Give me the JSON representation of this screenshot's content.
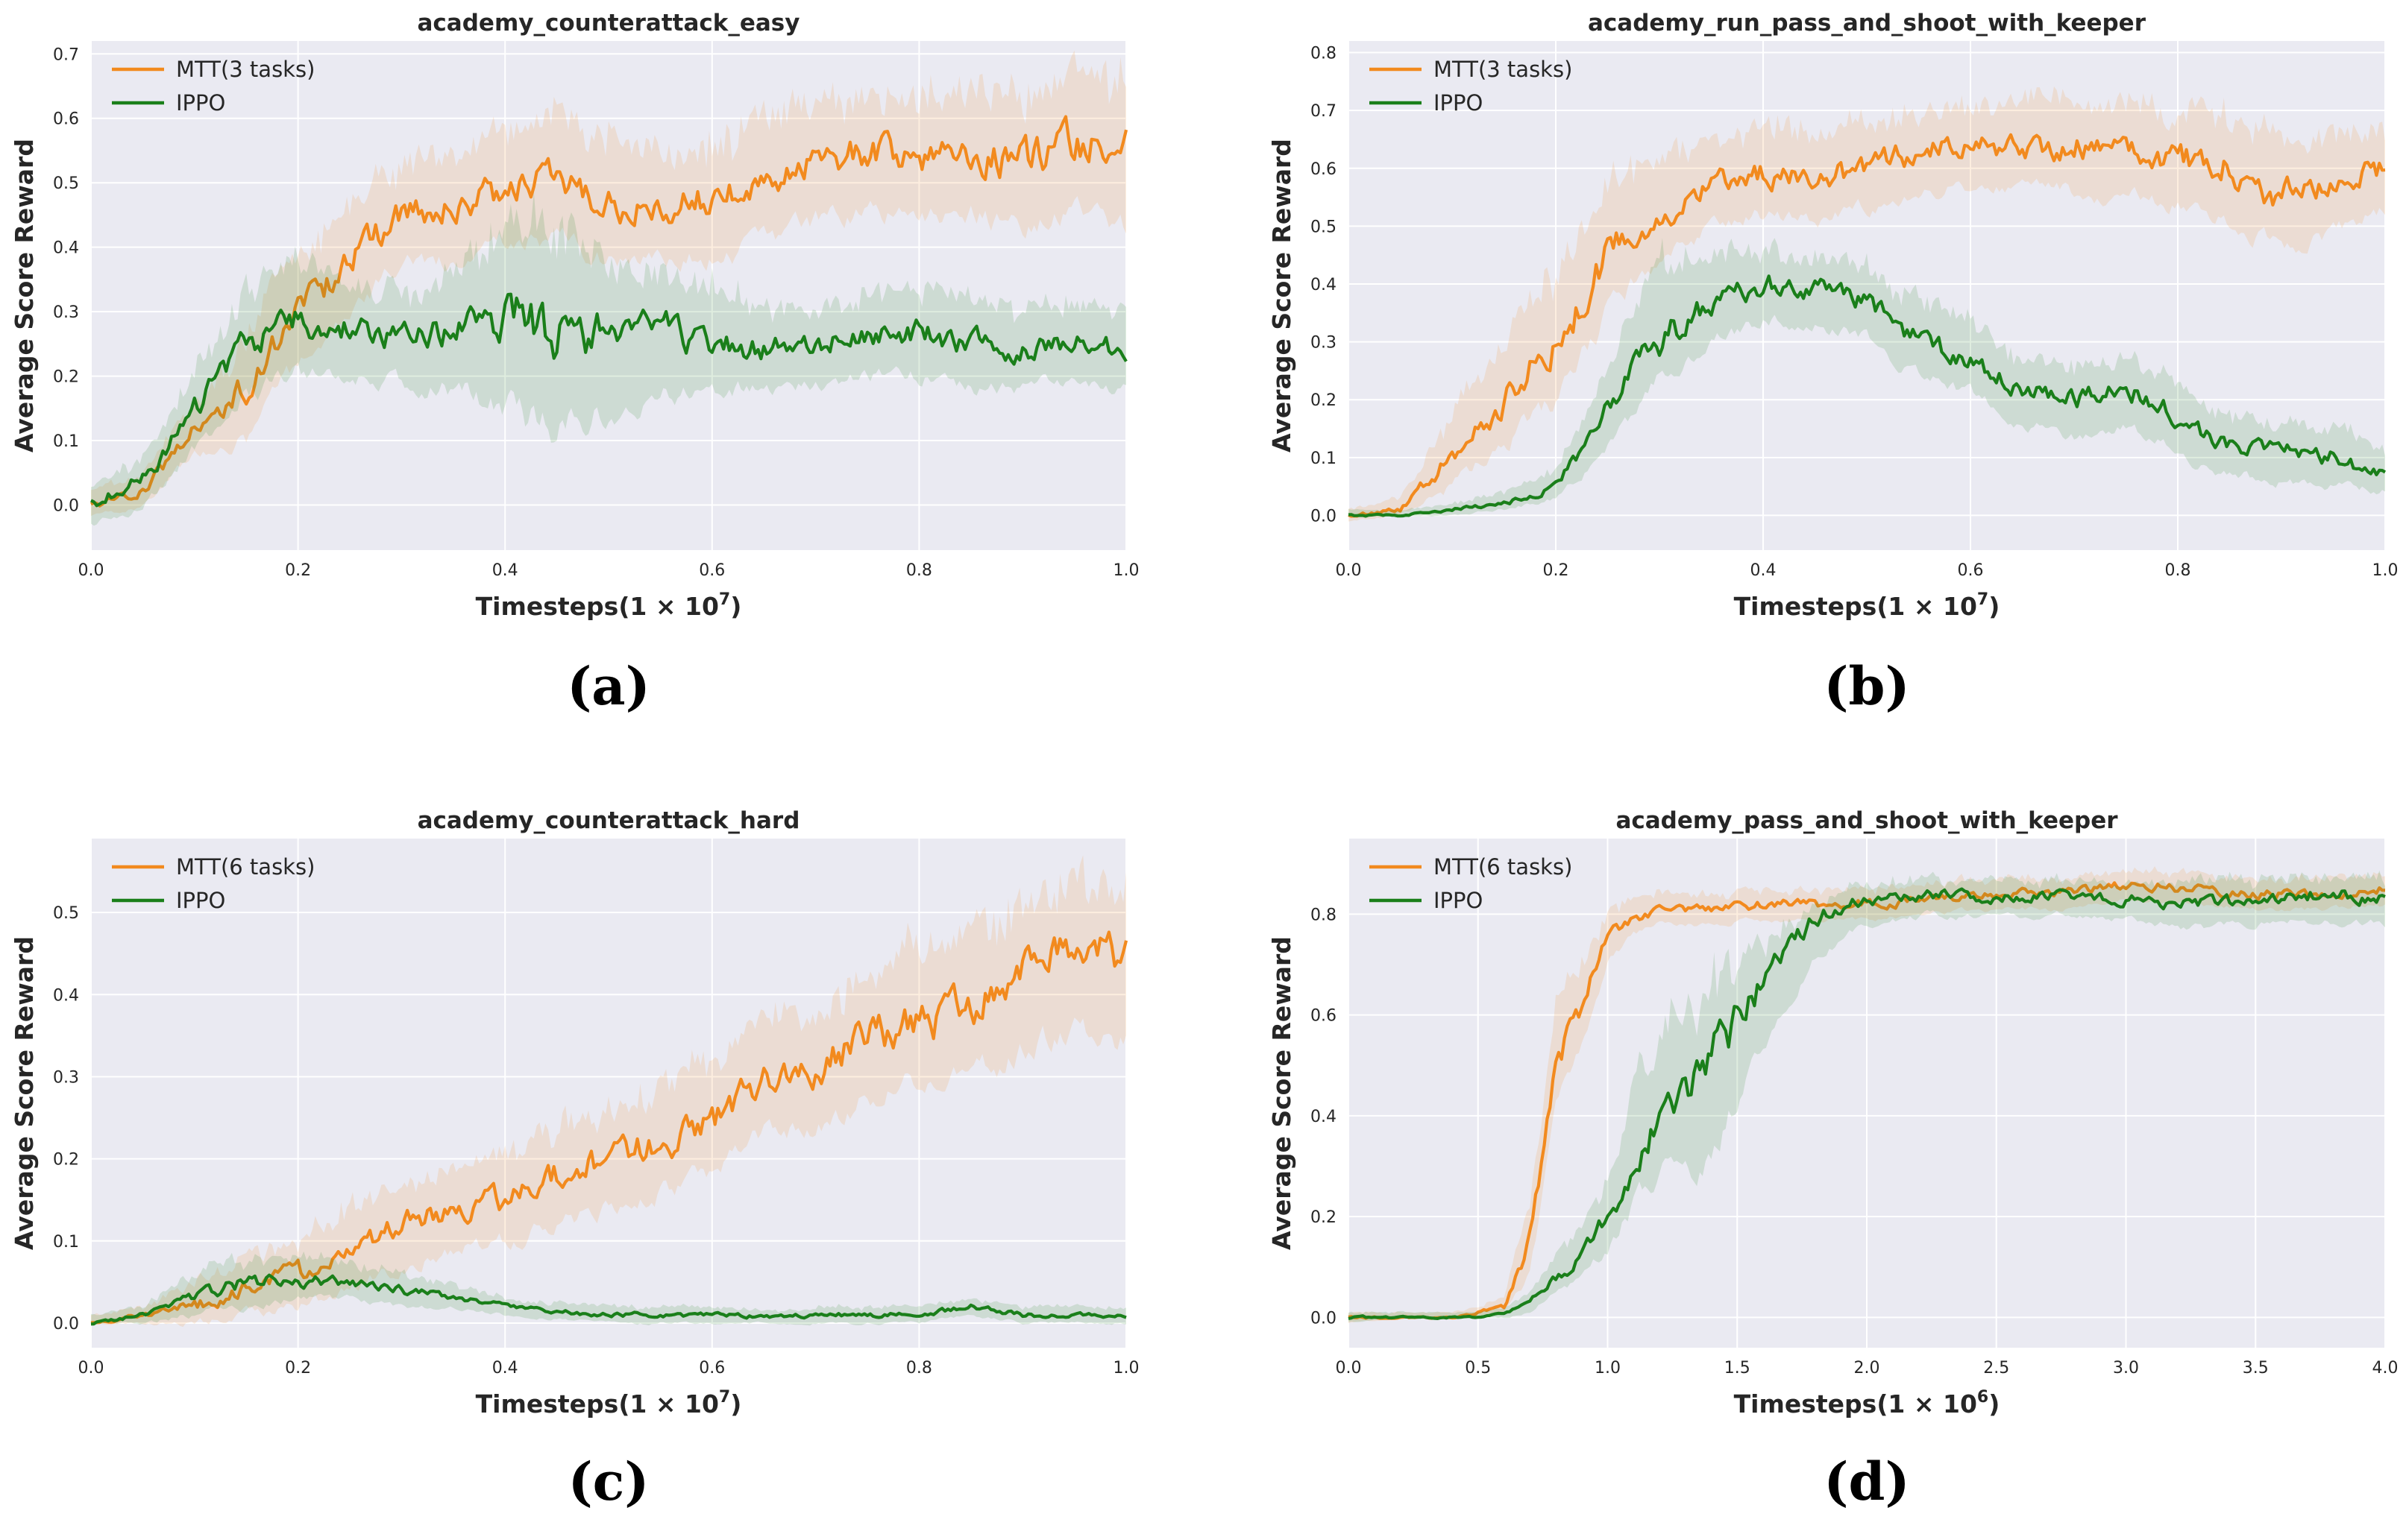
{
  "figure": {
    "panel_labels": [
      "(a)",
      "(b)",
      "(c)",
      "(d)"
    ]
  },
  "colors": {
    "mtt": "#f28a1e",
    "ippo": "#1a7f1a",
    "plot_bg": "#eaeaf2",
    "grid": "#ffffff"
  },
  "chart_data": [
    {
      "type": "line",
      "title": "academy_counterattack_easy",
      "xlabel": "Timesteps(1 × 10^7)",
      "xlabel_base": "Timesteps(1 × 10",
      "xlabel_exp": "7",
      "ylabel": "Average Score Reward",
      "xlim": [
        0.0,
        1.0
      ],
      "ylim": [
        -0.07,
        0.72
      ],
      "xticks": [
        "0.0",
        "0.2",
        "0.4",
        "0.6",
        "0.8",
        "1.0"
      ],
      "xtick_values": [
        0.0,
        0.2,
        0.4,
        0.6,
        0.8,
        1.0
      ],
      "yticks": [
        "0.0",
        "0.1",
        "0.2",
        "0.3",
        "0.4",
        "0.5",
        "0.6",
        "0.7"
      ],
      "ytick_values": [
        0.0,
        0.1,
        0.2,
        0.3,
        0.4,
        0.5,
        0.6,
        0.7
      ],
      "grid": true,
      "legend_position": "top-left",
      "series": [
        {
          "name": "MTT(3 tasks)",
          "x": [
            0.0,
            0.05,
            0.1,
            0.15,
            0.2,
            0.25,
            0.3,
            0.35,
            0.4,
            0.45,
            0.5,
            0.55,
            0.6,
            0.65,
            0.7,
            0.75,
            0.8,
            0.85,
            0.9,
            0.95,
            1.0
          ],
          "y": [
            0.0,
            0.02,
            0.12,
            0.18,
            0.3,
            0.38,
            0.45,
            0.46,
            0.49,
            0.5,
            0.47,
            0.45,
            0.48,
            0.49,
            0.53,
            0.55,
            0.54,
            0.55,
            0.53,
            0.56,
            0.55
          ],
          "y_low": [
            -0.02,
            0.0,
            0.08,
            0.1,
            0.22,
            0.3,
            0.38,
            0.38,
            0.41,
            0.41,
            0.38,
            0.38,
            0.39,
            0.4,
            0.44,
            0.46,
            0.45,
            0.45,
            0.43,
            0.45,
            0.43
          ],
          "y_high": [
            0.02,
            0.05,
            0.16,
            0.26,
            0.38,
            0.47,
            0.53,
            0.55,
            0.58,
            0.6,
            0.57,
            0.54,
            0.57,
            0.58,
            0.62,
            0.64,
            0.63,
            0.65,
            0.63,
            0.66,
            0.65
          ]
        },
        {
          "name": "IPPO",
          "x": [
            0.0,
            0.05,
            0.1,
            0.15,
            0.2,
            0.25,
            0.3,
            0.35,
            0.4,
            0.45,
            0.5,
            0.55,
            0.6,
            0.65,
            0.7,
            0.75,
            0.8,
            0.85,
            0.9,
            0.95,
            1.0
          ],
          "y": [
            0.0,
            0.04,
            0.15,
            0.25,
            0.29,
            0.27,
            0.26,
            0.27,
            0.3,
            0.28,
            0.26,
            0.27,
            0.26,
            0.24,
            0.25,
            0.26,
            0.27,
            0.25,
            0.24,
            0.25,
            0.24
          ],
          "y_low": [
            -0.03,
            0.0,
            0.09,
            0.17,
            0.2,
            0.2,
            0.19,
            0.18,
            0.15,
            0.12,
            0.14,
            0.17,
            0.18,
            0.18,
            0.19,
            0.2,
            0.2,
            0.18,
            0.18,
            0.19,
            0.18
          ],
          "y_high": [
            0.03,
            0.08,
            0.21,
            0.33,
            0.38,
            0.34,
            0.33,
            0.36,
            0.43,
            0.44,
            0.37,
            0.36,
            0.34,
            0.3,
            0.31,
            0.32,
            0.34,
            0.32,
            0.3,
            0.31,
            0.3
          ]
        }
      ]
    },
    {
      "type": "line",
      "title": "academy_run_pass_and_shoot_with_keeper",
      "xlabel": "Timesteps(1 × 10^7)",
      "xlabel_base": "Timesteps(1 × 10",
      "xlabel_exp": "7",
      "ylabel": "Average Score Reward",
      "xlim": [
        0.0,
        1.0
      ],
      "ylim": [
        -0.06,
        0.82
      ],
      "xticks": [
        "0.0",
        "0.2",
        "0.4",
        "0.6",
        "0.8",
        "1.0"
      ],
      "xtick_values": [
        0.0,
        0.2,
        0.4,
        0.6,
        0.8,
        1.0
      ],
      "yticks": [
        "0.0",
        "0.1",
        "0.2",
        "0.3",
        "0.4",
        "0.5",
        "0.6",
        "0.7",
        "0.8"
      ],
      "ytick_values": [
        0.0,
        0.1,
        0.2,
        0.3,
        0.4,
        0.5,
        0.6,
        0.7,
        0.8
      ],
      "grid": true,
      "legend_position": "top-left",
      "series": [
        {
          "name": "MTT(3 tasks)",
          "x": [
            0.0,
            0.05,
            0.1,
            0.15,
            0.2,
            0.25,
            0.3,
            0.35,
            0.4,
            0.45,
            0.5,
            0.55,
            0.6,
            0.65,
            0.7,
            0.75,
            0.8,
            0.85,
            0.9,
            0.95,
            1.0
          ],
          "y": [
            0.0,
            0.01,
            0.1,
            0.2,
            0.3,
            0.45,
            0.52,
            0.57,
            0.59,
            0.58,
            0.6,
            0.63,
            0.64,
            0.63,
            0.64,
            0.63,
            0.62,
            0.6,
            0.55,
            0.57,
            0.6
          ],
          "y_low": [
            -0.01,
            0.0,
            0.05,
            0.12,
            0.2,
            0.35,
            0.44,
            0.5,
            0.52,
            0.51,
            0.53,
            0.56,
            0.57,
            0.56,
            0.56,
            0.55,
            0.54,
            0.5,
            0.46,
            0.49,
            0.53
          ],
          "y_high": [
            0.01,
            0.03,
            0.17,
            0.3,
            0.42,
            0.56,
            0.61,
            0.65,
            0.67,
            0.66,
            0.68,
            0.7,
            0.71,
            0.71,
            0.72,
            0.71,
            0.7,
            0.69,
            0.64,
            0.65,
            0.67
          ]
        },
        {
          "name": "IPPO",
          "x": [
            0.0,
            0.05,
            0.1,
            0.15,
            0.2,
            0.25,
            0.3,
            0.35,
            0.4,
            0.45,
            0.5,
            0.55,
            0.6,
            0.65,
            0.7,
            0.75,
            0.8,
            0.85,
            0.9,
            0.95,
            1.0
          ],
          "y": [
            0.0,
            0.0,
            0.01,
            0.02,
            0.05,
            0.18,
            0.3,
            0.36,
            0.4,
            0.39,
            0.37,
            0.3,
            0.27,
            0.22,
            0.2,
            0.22,
            0.17,
            0.12,
            0.11,
            0.1,
            0.07
          ],
          "y_low": [
            0.0,
            0.0,
            0.0,
            0.01,
            0.03,
            0.12,
            0.23,
            0.3,
            0.34,
            0.33,
            0.31,
            0.24,
            0.21,
            0.16,
            0.14,
            0.16,
            0.11,
            0.07,
            0.06,
            0.05,
            0.04
          ],
          "y_high": [
            0.01,
            0.01,
            0.02,
            0.04,
            0.08,
            0.26,
            0.44,
            0.45,
            0.46,
            0.45,
            0.43,
            0.37,
            0.33,
            0.28,
            0.26,
            0.28,
            0.23,
            0.17,
            0.16,
            0.15,
            0.11
          ]
        }
      ]
    },
    {
      "type": "line",
      "title": "academy_counterattack_hard",
      "xlabel": "Timesteps(1 × 10^7)",
      "xlabel_base": "Timesteps(1 × 10",
      "xlabel_exp": "7",
      "ylabel": "Average Score Reward",
      "xlim": [
        0.0,
        1.0
      ],
      "ylim": [
        -0.03,
        0.59
      ],
      "xticks": [
        "0.0",
        "0.2",
        "0.4",
        "0.6",
        "0.8",
        "1.0"
      ],
      "xtick_values": [
        0.0,
        0.2,
        0.4,
        0.6,
        0.8,
        1.0
      ],
      "yticks": [
        "0.0",
        "0.1",
        "0.2",
        "0.3",
        "0.4",
        "0.5"
      ],
      "ytick_values": [
        0.0,
        0.1,
        0.2,
        0.3,
        0.4,
        0.5
      ],
      "grid": true,
      "legend_position": "top-left",
      "series": [
        {
          "name": "MTT(6 tasks)",
          "x": [
            0.0,
            0.05,
            0.1,
            0.15,
            0.2,
            0.25,
            0.3,
            0.35,
            0.4,
            0.45,
            0.5,
            0.55,
            0.6,
            0.65,
            0.7,
            0.75,
            0.8,
            0.85,
            0.9,
            0.95,
            1.0
          ],
          "y": [
            0.0,
            0.01,
            0.02,
            0.04,
            0.06,
            0.09,
            0.12,
            0.14,
            0.15,
            0.18,
            0.2,
            0.22,
            0.24,
            0.3,
            0.31,
            0.35,
            0.37,
            0.38,
            0.42,
            0.45,
            0.44
          ],
          "y_low": [
            0.0,
            0.0,
            0.0,
            0.01,
            0.02,
            0.04,
            0.07,
            0.09,
            0.1,
            0.12,
            0.14,
            0.16,
            0.18,
            0.23,
            0.24,
            0.27,
            0.29,
            0.3,
            0.33,
            0.36,
            0.34
          ],
          "y_high": [
            0.01,
            0.02,
            0.05,
            0.08,
            0.1,
            0.14,
            0.17,
            0.19,
            0.21,
            0.24,
            0.26,
            0.29,
            0.31,
            0.37,
            0.38,
            0.43,
            0.46,
            0.47,
            0.51,
            0.54,
            0.53
          ]
        },
        {
          "name": "IPPO",
          "x": [
            0.0,
            0.05,
            0.1,
            0.15,
            0.2,
            0.25,
            0.3,
            0.35,
            0.4,
            0.45,
            0.5,
            0.55,
            0.6,
            0.65,
            0.7,
            0.75,
            0.8,
            0.85,
            0.9,
            0.95,
            1.0
          ],
          "y": [
            0.0,
            0.01,
            0.03,
            0.05,
            0.05,
            0.05,
            0.04,
            0.03,
            0.02,
            0.015,
            0.01,
            0.01,
            0.01,
            0.008,
            0.01,
            0.01,
            0.01,
            0.02,
            0.01,
            0.01,
            0.01
          ],
          "y_low": [
            0.0,
            0.0,
            0.01,
            0.02,
            0.03,
            0.03,
            0.02,
            0.02,
            0.01,
            0.005,
            0.0,
            0.0,
            0.0,
            0.0,
            0.0,
            0.0,
            0.0,
            0.01,
            0.0,
            0.0,
            0.0
          ],
          "y_high": [
            0.01,
            0.02,
            0.06,
            0.08,
            0.08,
            0.07,
            0.06,
            0.05,
            0.03,
            0.025,
            0.02,
            0.02,
            0.02,
            0.015,
            0.02,
            0.02,
            0.02,
            0.03,
            0.02,
            0.02,
            0.02
          ]
        }
      ]
    },
    {
      "type": "line",
      "title": "academy_pass_and_shoot_with_keeper",
      "xlabel": "Timesteps(1 × 10^6)",
      "xlabel_base": "Timesteps(1 × 10",
      "xlabel_exp": "6",
      "ylabel": "Average Score Reward",
      "xlim": [
        0.0,
        4.0
      ],
      "ylim": [
        -0.06,
        0.95
      ],
      "xticks": [
        "0.0",
        "0.5",
        "1.0",
        "1.5",
        "2.0",
        "2.5",
        "3.0",
        "3.5",
        "4.0"
      ],
      "xtick_values": [
        0.0,
        0.5,
        1.0,
        1.5,
        2.0,
        2.5,
        3.0,
        3.5,
        4.0
      ],
      "yticks": [
        "0.0",
        "0.2",
        "0.4",
        "0.6",
        "0.8"
      ],
      "ytick_values": [
        0.0,
        0.2,
        0.4,
        0.6,
        0.8
      ],
      "grid": true,
      "legend_position": "top-left",
      "series": [
        {
          "name": "MTT(6 tasks)",
          "x": [
            0.0,
            0.25,
            0.4,
            0.5,
            0.6,
            0.7,
            0.8,
            0.9,
            1.0,
            1.1,
            1.2,
            1.4,
            1.6,
            1.8,
            2.0,
            2.25,
            2.5,
            2.75,
            3.0,
            3.25,
            3.5,
            3.75,
            4.0
          ],
          "y": [
            0.0,
            0.0,
            0.0,
            0.01,
            0.02,
            0.15,
            0.5,
            0.62,
            0.75,
            0.79,
            0.81,
            0.81,
            0.82,
            0.82,
            0.82,
            0.83,
            0.84,
            0.84,
            0.86,
            0.85,
            0.84,
            0.84,
            0.85
          ],
          "y_low": [
            -0.01,
            0.0,
            0.0,
            0.0,
            0.01,
            0.08,
            0.4,
            0.54,
            0.7,
            0.76,
            0.78,
            0.78,
            0.79,
            0.79,
            0.79,
            0.8,
            0.81,
            0.81,
            0.83,
            0.82,
            0.81,
            0.81,
            0.82
          ],
          "y_high": [
            0.01,
            0.01,
            0.01,
            0.02,
            0.04,
            0.22,
            0.6,
            0.7,
            0.8,
            0.83,
            0.84,
            0.84,
            0.85,
            0.85,
            0.85,
            0.86,
            0.87,
            0.87,
            0.89,
            0.88,
            0.87,
            0.87,
            0.88
          ]
        },
        {
          "name": "IPPO",
          "x": [
            0.0,
            0.25,
            0.4,
            0.5,
            0.6,
            0.7,
            0.8,
            0.9,
            1.0,
            1.1,
            1.2,
            1.4,
            1.6,
            1.8,
            2.0,
            2.25,
            2.5,
            2.75,
            3.0,
            3.25,
            3.5,
            3.75,
            4.0
          ],
          "y": [
            0.0,
            0.0,
            0.0,
            0.0,
            0.01,
            0.03,
            0.08,
            0.12,
            0.2,
            0.3,
            0.4,
            0.52,
            0.67,
            0.79,
            0.83,
            0.84,
            0.83,
            0.84,
            0.83,
            0.82,
            0.83,
            0.84,
            0.83
          ],
          "y_low": [
            -0.01,
            0.0,
            0.0,
            0.0,
            0.0,
            0.01,
            0.05,
            0.08,
            0.14,
            0.22,
            0.28,
            0.31,
            0.55,
            0.72,
            0.78,
            0.8,
            0.79,
            0.8,
            0.79,
            0.77,
            0.78,
            0.79,
            0.78
          ],
          "y_high": [
            0.01,
            0.01,
            0.01,
            0.01,
            0.02,
            0.05,
            0.12,
            0.18,
            0.28,
            0.45,
            0.55,
            0.66,
            0.76,
            0.83,
            0.86,
            0.87,
            0.86,
            0.87,
            0.86,
            0.86,
            0.87,
            0.88,
            0.87
          ]
        }
      ]
    }
  ]
}
